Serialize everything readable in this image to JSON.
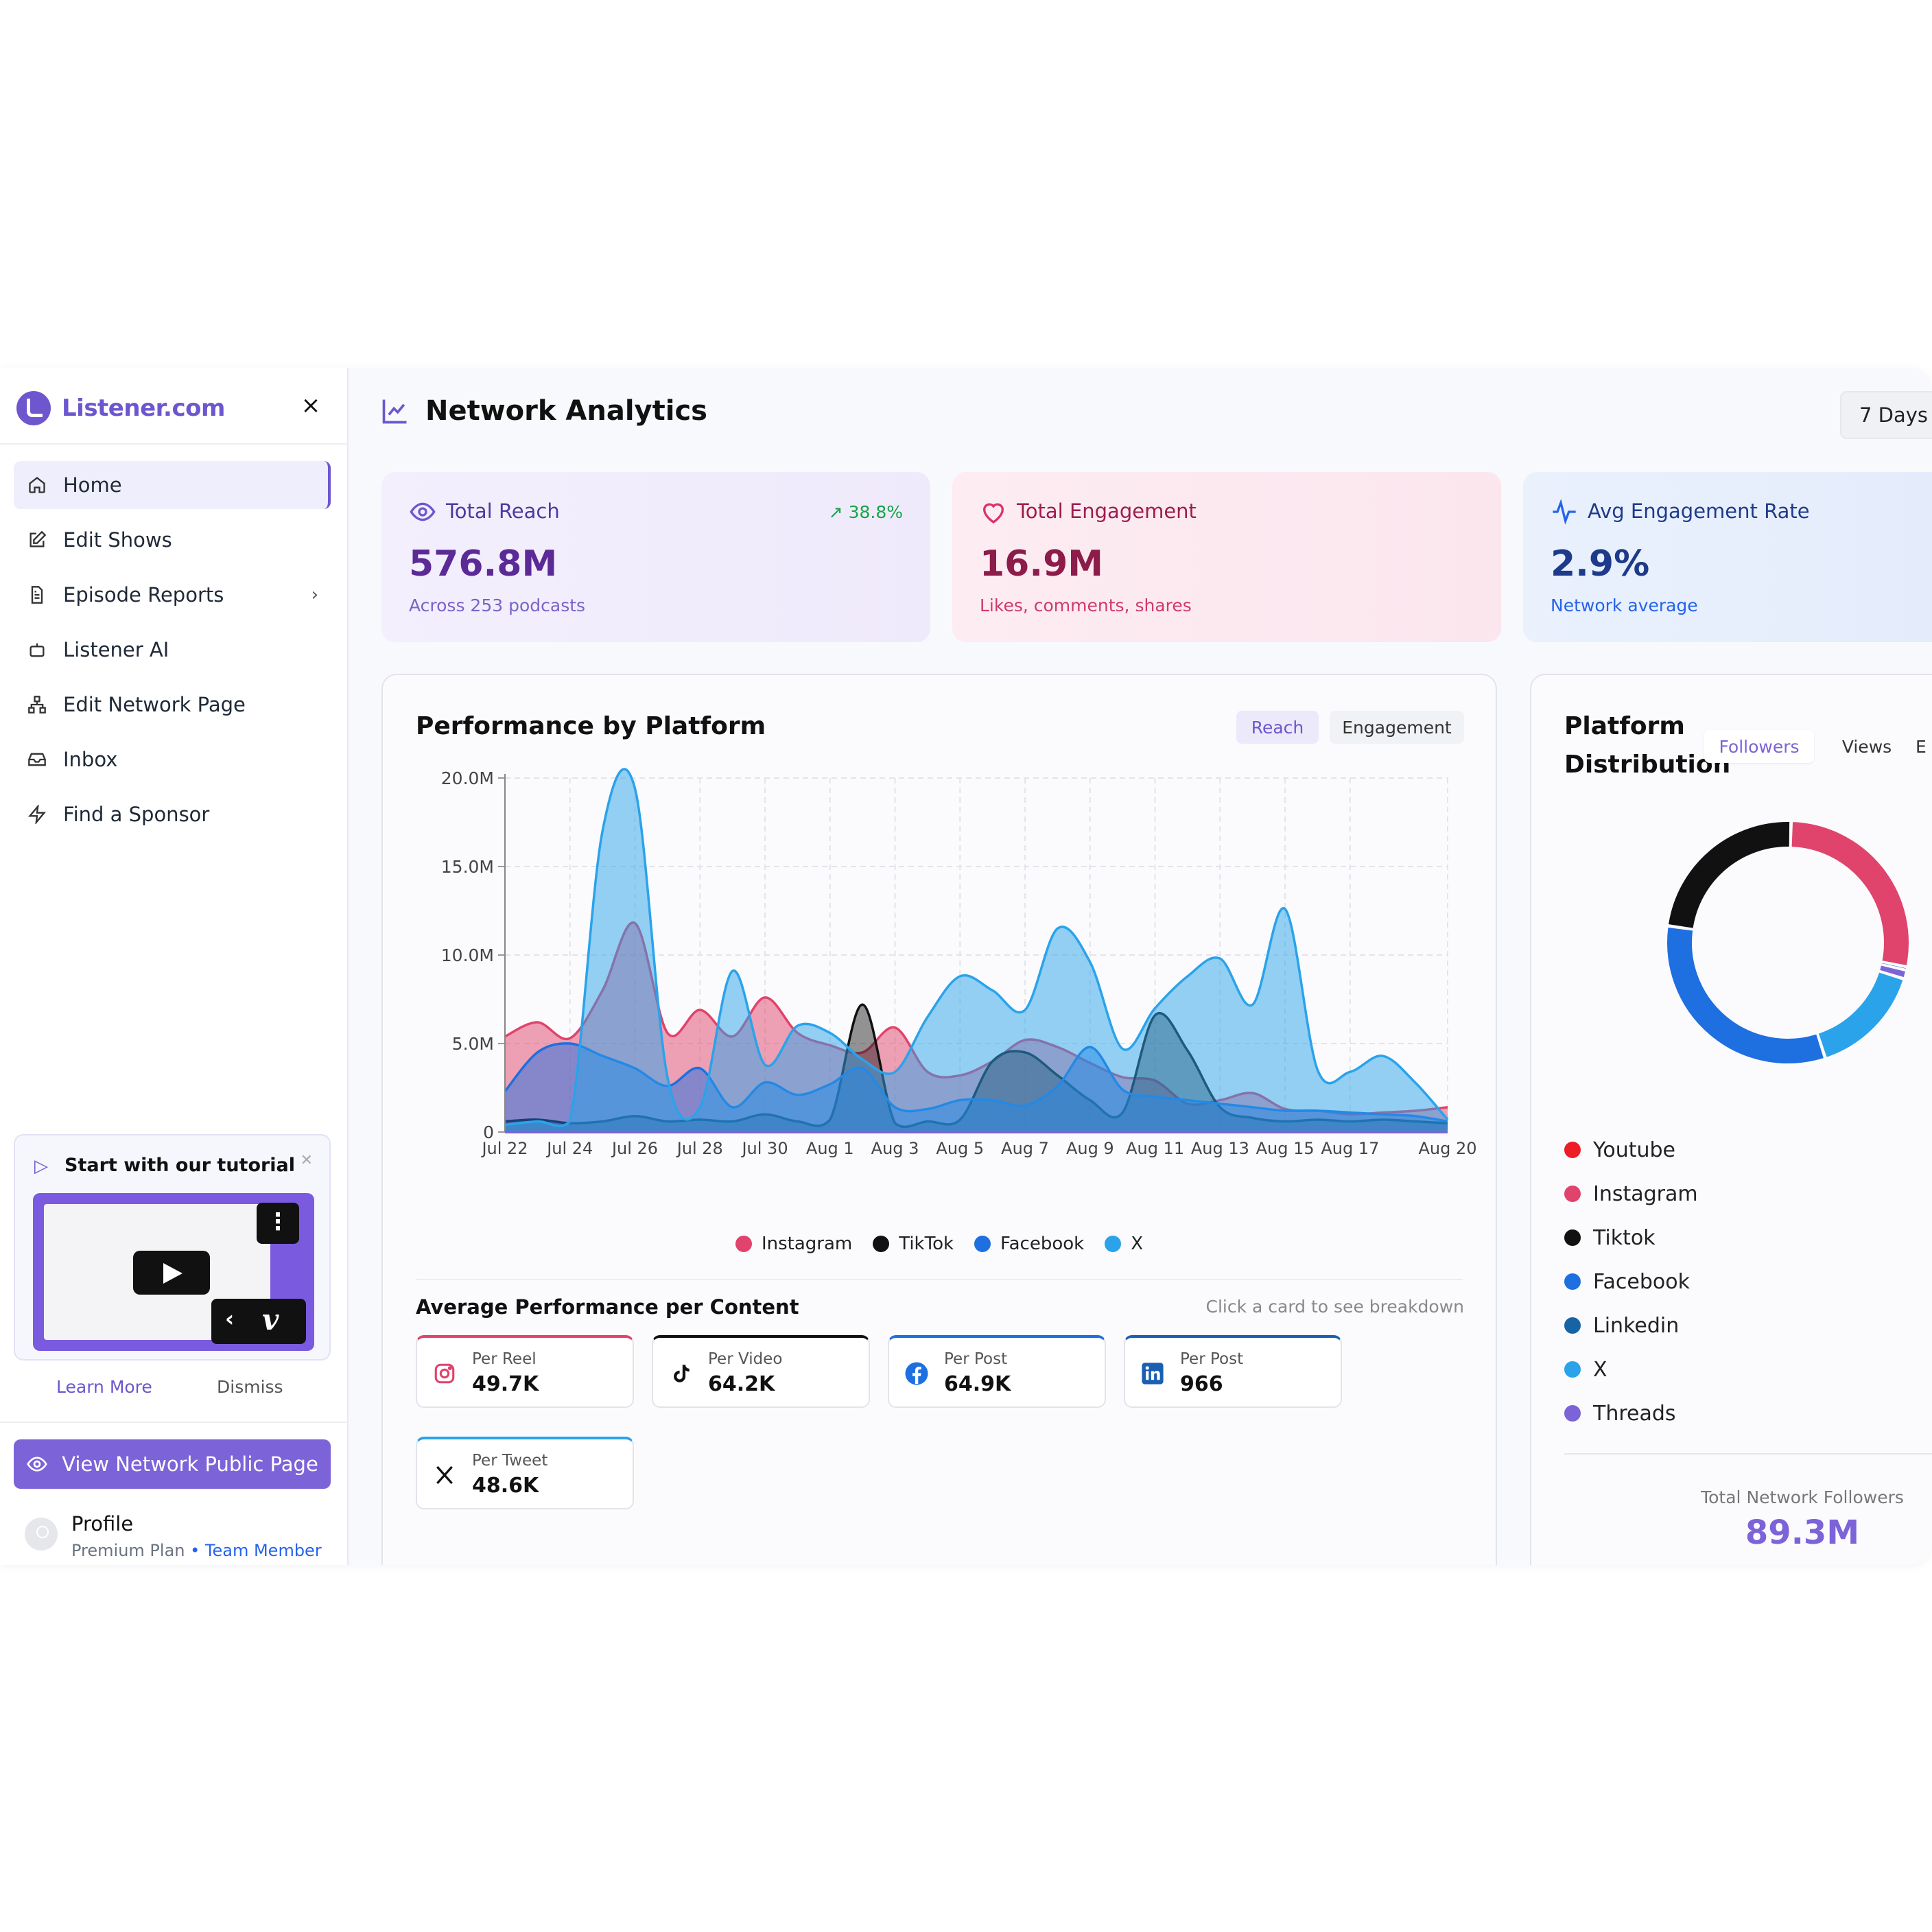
{
  "brand": {
    "name": "Listener.com"
  },
  "sidebar": {
    "items": [
      {
        "label": "Home",
        "icon": "home-icon",
        "active": true
      },
      {
        "label": "Edit Shows",
        "icon": "edit-icon"
      },
      {
        "label": "Episode Reports",
        "icon": "file-text-icon",
        "has_chevron": true
      },
      {
        "label": "Listener AI",
        "icon": "bot-icon"
      },
      {
        "label": "Edit Network Page",
        "icon": "network-icon"
      },
      {
        "label": "Inbox",
        "icon": "inbox-icon"
      },
      {
        "label": "Find a Sponsor",
        "icon": "bolt-icon"
      }
    ],
    "tutorial": {
      "title": "Start with our tutorial",
      "learn_more": "Learn More",
      "dismiss": "Dismiss"
    },
    "view_public_button": "View Network Public Page",
    "profile": {
      "name": "Profile",
      "plan": "Premium Plan",
      "role": "• Team Member"
    }
  },
  "header": {
    "title": "Network Analytics",
    "range": "7 Days"
  },
  "stats": [
    {
      "label": "Total Reach",
      "value": "576.8M",
      "sub": "Across 253 podcasts",
      "trend": "38.8%",
      "icon": "eye-icon"
    },
    {
      "label": "Total Engagement",
      "value": "16.9M",
      "sub": "Likes, comments, shares",
      "icon": "heart-icon"
    },
    {
      "label": "Avg Engagement Rate",
      "value": "2.9%",
      "sub": "Network average",
      "icon": "activity-icon"
    }
  ],
  "performance": {
    "title": "Performance by Platform",
    "tabs": [
      {
        "label": "Reach",
        "active": true
      },
      {
        "label": "Engagement",
        "active": false
      }
    ],
    "avg_title": "Average Performance per Content",
    "avg_hint": "Click a card to see breakdown",
    "content_cards": [
      {
        "label": "Per Reel",
        "value": "49.7K",
        "icon": "instagram-icon",
        "color": "#e0436b"
      },
      {
        "label": "Per Video",
        "value": "64.2K",
        "icon": "tiktok-icon",
        "color": "#111111"
      },
      {
        "label": "Per Post",
        "value": "64.9K",
        "icon": "facebook-icon",
        "color": "#1e6fe0"
      },
      {
        "label": "Per Post",
        "value": "966",
        "icon": "linkedin-icon",
        "color": "#1b5fb3"
      },
      {
        "label": "Per Tweet",
        "value": "48.6K",
        "icon": "x-icon",
        "color": "#29a3ea"
      }
    ]
  },
  "chart_data": {
    "type": "area",
    "y_ticks": [
      "0",
      "5.0M",
      "10.0M",
      "15.0M",
      "20.0M"
    ],
    "ylim": [
      0,
      20000000
    ],
    "x_ticks": [
      "Jul 22",
      "Jul 24",
      "Jul 26",
      "Jul 28",
      "Jul 30",
      "Aug 1",
      "Aug 3",
      "Aug 5",
      "Aug 7",
      "Aug 9",
      "Aug 11",
      "Aug 13",
      "Aug 15",
      "Aug 17",
      "Aug 20"
    ],
    "grid": true,
    "legend_position": "bottom",
    "x": [
      "Jul 22",
      "Jul 23",
      "Jul 24",
      "Jul 25",
      "Jul 26",
      "Jul 27",
      "Jul 28",
      "Jul 29",
      "Jul 30",
      "Jul 31",
      "Aug 1",
      "Aug 2",
      "Aug 3",
      "Aug 4",
      "Aug 5",
      "Aug 6",
      "Aug 7",
      "Aug 8",
      "Aug 9",
      "Aug 10",
      "Aug 11",
      "Aug 12",
      "Aug 13",
      "Aug 14",
      "Aug 15",
      "Aug 16",
      "Aug 17",
      "Aug 18",
      "Aug 19",
      "Aug 20"
    ],
    "series": [
      {
        "name": "Instagram",
        "color": "#e0436b",
        "values": [
          5.4,
          6.2,
          5.3,
          8.0,
          11.8,
          5.6,
          6.9,
          5.4,
          7.6,
          5.6,
          4.9,
          4.5,
          5.9,
          3.4,
          3.2,
          4.0,
          5.2,
          4.8,
          3.9,
          3.1,
          2.9,
          1.6,
          1.8,
          2.2,
          1.3,
          1.2,
          1.0,
          1.1,
          1.2,
          1.4
        ]
      },
      {
        "name": "TikTok",
        "color": "#111111",
        "values": [
          0.6,
          0.7,
          0.5,
          0.6,
          0.9,
          0.6,
          0.7,
          0.6,
          1.0,
          0.6,
          0.7,
          7.2,
          0.5,
          0.6,
          0.7,
          4.0,
          4.5,
          3.2,
          1.8,
          1.1,
          6.6,
          4.6,
          1.4,
          0.8,
          0.6,
          0.7,
          0.6,
          0.7,
          0.6,
          0.5
        ]
      },
      {
        "name": "Facebook",
        "color": "#1e6fe0",
        "values": [
          2.3,
          4.5,
          5.0,
          4.3,
          3.6,
          2.6,
          3.6,
          1.4,
          2.8,
          2.1,
          2.7,
          3.6,
          1.4,
          1.3,
          1.8,
          1.8,
          1.5,
          2.6,
          4.8,
          2.4,
          2.0,
          1.8,
          1.6,
          1.4,
          1.2,
          1.2,
          1.1,
          1.0,
          0.9,
          0.6
        ]
      },
      {
        "name": "X",
        "color": "#2aa3ea",
        "values": [
          0.4,
          0.6,
          0.6,
          17.0,
          19.4,
          3.1,
          1.4,
          9.1,
          3.8,
          6.0,
          5.6,
          4.1,
          3.4,
          6.5,
          8.8,
          8.0,
          6.9,
          11.5,
          9.6,
          4.7,
          7.0,
          8.8,
          9.8,
          7.2,
          12.6,
          3.5,
          3.4,
          4.3,
          2.8,
          0.7
        ]
      }
    ]
  },
  "distribution": {
    "title_line1": "Platform",
    "title_line2": "Distribution",
    "tabs": [
      {
        "label": "Followers",
        "active": true
      },
      {
        "label": "Views",
        "active": false
      },
      {
        "label": "E",
        "active": false
      }
    ],
    "legend": [
      {
        "label": "Youtube",
        "color": "#ee1c25"
      },
      {
        "label": "Instagram",
        "color": "#e0436b"
      },
      {
        "label": "Tiktok",
        "color": "#111111"
      },
      {
        "label": "Facebook",
        "color": "#1e6fe0"
      },
      {
        "label": "Linkedin",
        "color": "#1664a6"
      },
      {
        "label": "X",
        "color": "#2aa3ea"
      },
      {
        "label": "Threads",
        "color": "#7c63d8"
      }
    ],
    "donut": [
      {
        "name": "Instagram",
        "color": "#e0436b",
        "share": 0.278
      },
      {
        "name": "Linkedin",
        "color": "#1664a6",
        "share": 0.004
      },
      {
        "name": "Threads",
        "color": "#7c63d8",
        "share": 0.012
      },
      {
        "name": "X",
        "color": "#2aa3ea",
        "share": 0.152
      },
      {
        "name": "Facebook",
        "color": "#1e6fe0",
        "share": 0.322
      },
      {
        "name": "Tiktok",
        "color": "#111111",
        "share": 0.232
      }
    ],
    "total_label": "Total Network Followers",
    "total_value": "89.3M"
  }
}
